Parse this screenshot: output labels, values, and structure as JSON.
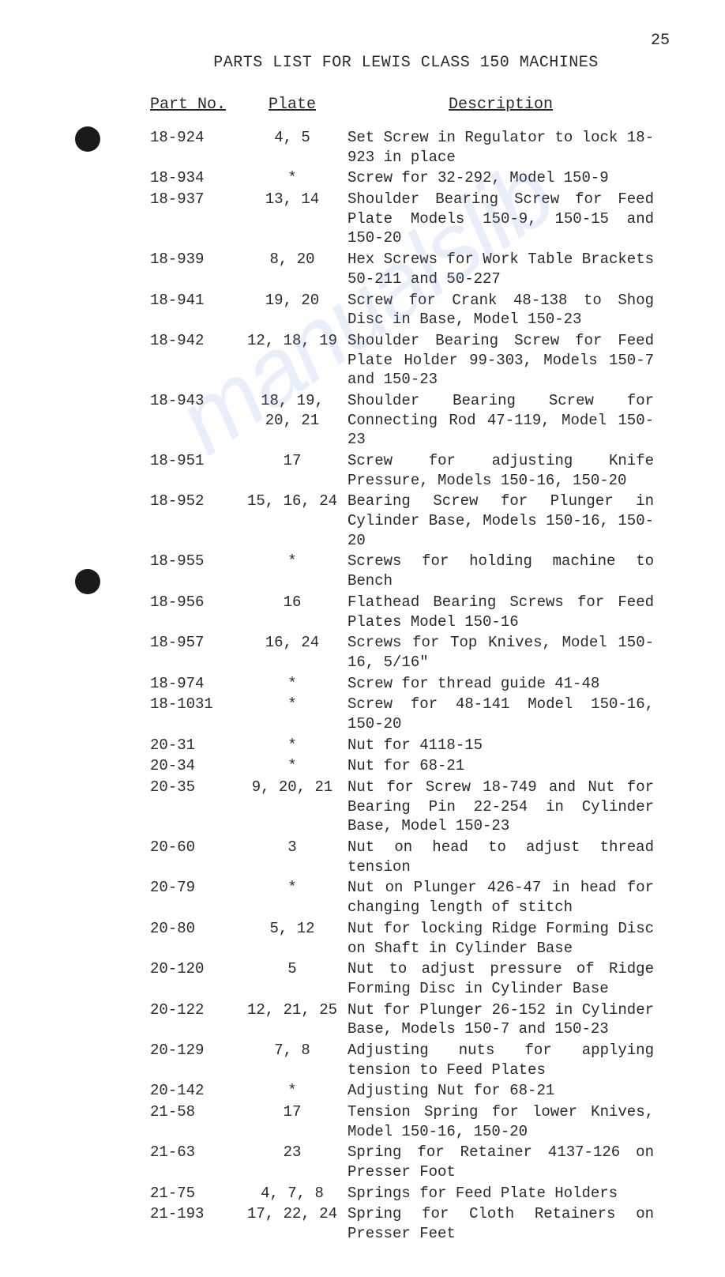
{
  "page_number": "25",
  "title": "PARTS LIST FOR LEWIS CLASS 150 MACHINES",
  "columns": {
    "part": "Part No.",
    "plate": "Plate",
    "desc": "Description"
  },
  "watermark": "manualslib",
  "style": {
    "background_color": "#ffffff",
    "text_color": "#2a2a2a",
    "font_family": "Courier New",
    "base_fontsize": 19,
    "title_fontsize": 20,
    "header_fontsize": 20,
    "hole_color": "#1a1a1a",
    "watermark_color": "rgba(100,150,220,0.15)",
    "col_widths": {
      "part": 120,
      "plate": 120
    }
  },
  "rows": [
    {
      "part": "18-924",
      "plate": "4, 5",
      "desc": "Set Screw in Regulator to lock 18-923 in place"
    },
    {
      "part": "18-934",
      "plate": "*",
      "desc": "Screw for 32-292, Model 150-9"
    },
    {
      "part": "18-937",
      "plate": "13, 14",
      "desc": "Shoulder Bearing Screw for Feed Plate Models 150-9, 150-15 and 150-20"
    },
    {
      "part": "18-939",
      "plate": "8, 20",
      "desc": "Hex Screws for Work Table Brackets 50-211 and 50-227"
    },
    {
      "part": "18-941",
      "plate": "19, 20",
      "desc": "Screw for Crank 48-138 to Shog Disc in Base, Model 150-23"
    },
    {
      "part": "18-942",
      "plate": "12, 18, 19",
      "desc": "Shoulder Bearing Screw for Feed Plate Holder 99-303, Models 150-7 and 150-23"
    },
    {
      "part": "18-943",
      "plate": "18, 19, 20, 21",
      "desc": "Shoulder Bearing Screw for Connecting Rod 47-119, Model 150-23"
    },
    {
      "part": "18-951",
      "plate": "17",
      "desc": "Screw for adjusting Knife Pressure, Models 150-16, 150-20"
    },
    {
      "part": "18-952",
      "plate": "15, 16, 24",
      "desc": "Bearing Screw for Plunger in Cylinder Base, Models 150-16, 150-20"
    },
    {
      "part": "18-955",
      "plate": "*",
      "desc": "Screws for holding machine to Bench"
    },
    {
      "part": "18-956",
      "plate": "16",
      "desc": "Flathead Bearing Screws for Feed Plates Model 150-16"
    },
    {
      "part": "18-957",
      "plate": "16, 24",
      "desc": "Screws for Top Knives, Model 150-16, 5/16\""
    },
    {
      "part": "18-974",
      "plate": "*",
      "desc": "Screw for thread guide 41-48"
    },
    {
      "part": "18-1031",
      "plate": "*",
      "desc": "Screw for 48-141 Model 150-16, 150-20"
    },
    {
      "part": "20-31",
      "plate": "*",
      "desc": "Nut for 4118-15"
    },
    {
      "part": "20-34",
      "plate": "*",
      "desc": "Nut for 68-21"
    },
    {
      "part": "20-35",
      "plate": "9, 20, 21",
      "desc": "Nut for Screw 18-749 and Nut for Bearing Pin 22-254 in Cylinder Base, Model 150-23"
    },
    {
      "part": "20-60",
      "plate": "3",
      "desc": "Nut on head to adjust thread tension"
    },
    {
      "part": "20-79",
      "plate": "*",
      "desc": "Nut on Plunger 426-47 in head for changing length of stitch"
    },
    {
      "part": "20-80",
      "plate": "5, 12",
      "desc": "Nut for locking Ridge Forming Disc on Shaft in Cylinder Base"
    },
    {
      "part": "20-120",
      "plate": "5",
      "desc": "Nut to adjust pressure of Ridge Forming Disc in Cylinder Base"
    },
    {
      "part": "20-122",
      "plate": "12, 21, 25",
      "desc": "Nut for Plunger 26-152 in Cylinder Base, Models 150-7 and 150-23"
    },
    {
      "part": "20-129",
      "plate": "7, 8",
      "desc": "Adjusting nuts for applying tension to Feed Plates"
    },
    {
      "part": "20-142",
      "plate": "*",
      "desc": "Adjusting Nut for 68-21"
    },
    {
      "part": "21-58",
      "plate": "17",
      "desc": "Tension Spring for lower Knives, Model 150-16, 150-20"
    },
    {
      "part": "21-63",
      "plate": "23",
      "desc": "Spring for Retainer 4137-126 on Presser Foot"
    },
    {
      "part": "21-75",
      "plate": "4, 7, 8",
      "desc": "Springs for Feed Plate Holders"
    },
    {
      "part": "21-193",
      "plate": "17, 22, 24",
      "desc": "Spring for Cloth Retainers on Presser Feet"
    }
  ]
}
